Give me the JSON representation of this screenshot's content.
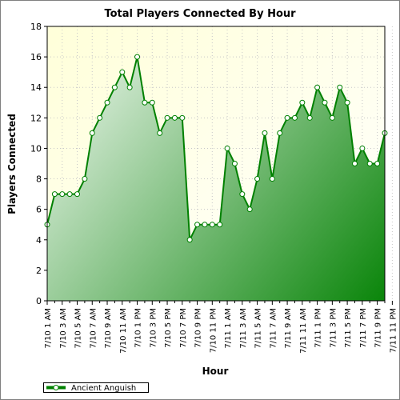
{
  "chart_data": {
    "type": "area",
    "title": "Total Players Connected By Hour",
    "xlabel": "Hour",
    "ylabel": "Players Connected",
    "ylim": [
      0,
      18
    ],
    "yticks": [
      "0",
      "2",
      "4",
      "6",
      "8",
      "10",
      "12",
      "14",
      "16",
      "18"
    ],
    "grid": true,
    "legend_position": "bottom-left",
    "x_tick_labels": [
      "7/10 1 AM",
      "7/10 3 AM",
      "7/10 5 AM",
      "7/10 7 AM",
      "7/10 9 AM",
      "7/10 11 AM",
      "7/10 1 PM",
      "7/10 3 PM",
      "7/10 5 PM",
      "7/10 7 PM",
      "7/10 9 PM",
      "7/10 11 PM",
      "7/11 1 AM",
      "7/11 3 AM",
      "7/11 5 AM",
      "7/11 7 AM",
      "7/11 9 AM",
      "7/11 11 AM",
      "7/11 1 PM",
      "7/11 3 PM",
      "7/11 5 PM",
      "7/11 7 PM",
      "7/11 9 PM",
      "7/11 11 PM"
    ],
    "series": [
      {
        "name": "Ancient Anguish",
        "color": "#008000",
        "values": [
          5,
          7,
          7,
          7,
          7,
          8,
          11,
          12,
          13,
          14,
          15,
          14,
          16,
          13,
          13,
          11,
          12,
          12,
          12,
          4,
          5,
          5,
          5,
          5,
          10,
          9,
          7,
          6,
          8,
          11,
          8,
          11,
          12,
          12,
          13,
          12,
          14,
          13,
          12,
          14,
          13,
          9,
          10,
          9,
          9,
          11
        ]
      }
    ]
  }
}
